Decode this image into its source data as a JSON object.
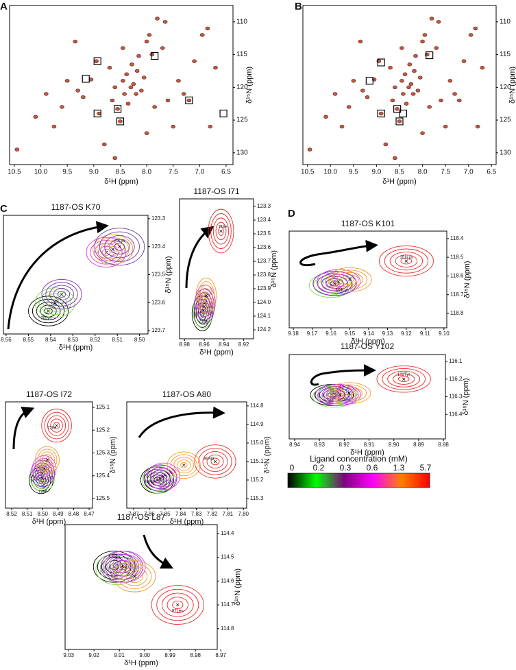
{
  "chart_data": [
    {
      "type": "scatter",
      "panel": "A",
      "x_label": "δ¹H (ppm)",
      "y_label": "δ¹⁵N (ppm)",
      "color": "#c25a45",
      "xlim": [
        10.59,
        6.37
      ],
      "ylim": [
        107.5,
        131.8
      ],
      "xticks": [
        10.5,
        {
          "value": 10,
          "label": "10.0"
        },
        9.5,
        {
          "value": 9,
          "label": "9.0"
        },
        8.5,
        {
          "value": 8,
          "label": "8.0"
        },
        7.5,
        {
          "value": 7,
          "label": "7.0"
        },
        6.5
      ],
      "yticks": [
        110,
        115,
        120,
        125,
        130
      ],
      "x": [
        10.45,
        10.1,
        9.9,
        9.75,
        9.6,
        9.5,
        9.3,
        9.2,
        9.05,
        8.95,
        8.9,
        8.8,
        8.7,
        8.65,
        8.6,
        8.55,
        8.5,
        8.45,
        8.42,
        8.38,
        8.35,
        8.3,
        8.28,
        8.25,
        8.2,
        8.18,
        8.15,
        8.1,
        8.05,
        8.0,
        7.95,
        7.9,
        7.85,
        7.8,
        7.7,
        7.6,
        7.5,
        7.4,
        7.3,
        7.2,
        7.1,
        6.95,
        6.85,
        6.8,
        6.7,
        8.6,
        8.0,
        9.35,
        7.65,
        8.45
      ],
      "y": [
        129.5,
        124.5,
        121,
        126,
        123,
        119,
        120.5,
        121.5,
        118.8,
        116,
        124,
        128.7,
        117,
        122,
        120,
        123.3,
        125.2,
        119,
        121,
        118,
        122.5,
        120,
        116.5,
        119.5,
        121,
        117.5,
        115.2,
        120.5,
        118.5,
        113,
        112,
        115,
        123,
        109.5,
        114,
        122,
        126,
        119,
        121,
        122,
        116,
        112,
        111,
        126,
        117,
        130.8,
        127,
        113,
        110,
        114
      ],
      "boxes": {
        "x": [
          8.93,
          9.15,
          7.85,
          8.55,
          8.93,
          8.5,
          7.2,
          6.55
        ],
        "y": [
          116,
          118.7,
          115.2,
          123.3,
          124,
          125.2,
          122,
          124
        ]
      }
    },
    {
      "type": "scatter",
      "panel": "B",
      "x_label": "δ¹H (ppm)",
      "y_label": "δ¹⁵N (ppm)",
      "color": "#c25a45",
      "xlim": [
        10.6,
        6.4
      ],
      "ylim": [
        107.5,
        131.8
      ],
      "xticks": [
        10.5,
        {
          "value": 10,
          "label": "10.0"
        },
        9.5,
        {
          "value": 9,
          "label": "9.0"
        },
        8.5,
        {
          "value": 8,
          "label": "8.0"
        },
        7.5,
        {
          "value": 7,
          "label": "7.0"
        },
        6.5
      ],
      "yticks": [
        110,
        115,
        120,
        125,
        130
      ],
      "x": [
        10.45,
        10.1,
        9.9,
        9.75,
        9.6,
        9.5,
        9.3,
        9.2,
        9.05,
        8.95,
        8.9,
        8.8,
        8.7,
        8.65,
        8.6,
        8.55,
        8.5,
        8.45,
        8.42,
        8.38,
        8.35,
        8.3,
        8.28,
        8.25,
        8.2,
        8.18,
        8.15,
        8.1,
        8.05,
        8.0,
        7.95,
        7.9,
        7.85,
        7.8,
        7.7,
        7.6,
        7.5,
        7.4,
        7.3,
        7.2,
        7.1,
        6.95,
        6.85,
        6.8,
        6.7,
        8.6,
        8.0,
        9.35,
        7.65,
        8.45
      ],
      "y": [
        129.5,
        124.5,
        121,
        126,
        123,
        119,
        120.5,
        121.5,
        118.8,
        116,
        124,
        128.7,
        117,
        122,
        120,
        123.3,
        125.2,
        119,
        121,
        118,
        122.5,
        120,
        116.5,
        119.5,
        121,
        117.5,
        115.2,
        120.5,
        118.5,
        113,
        112,
        115,
        123,
        109.5,
        114,
        122,
        126,
        119,
        121,
        122,
        116,
        112,
        111,
        126,
        117,
        130.8,
        127,
        113,
        110,
        114
      ],
      "boxes": {
        "x": [
          8.9,
          9.15,
          7.85,
          8.55,
          8.42,
          8.9,
          8.5
        ],
        "y": [
          116.2,
          119,
          115.1,
          123.3,
          124,
          124,
          125.2
        ]
      }
    },
    {
      "type": "contour",
      "panel": "C",
      "title": "1187-OS K70",
      "x_label": "δ¹H (ppm)",
      "y_label": "δ¹⁵N (ppm)",
      "xlim": [
        8.5612,
        8.4962
      ],
      "ylim": [
        123.288,
        123.712
      ],
      "xticks": [
        8.56,
        8.55,
        8.54,
        8.53,
        8.52,
        8.51,
        {
          "value": 8.5,
          "label": "8.50"
        }
      ],
      "yticks": [
        123.3,
        123.4,
        123.5,
        123.6,
        123.7
      ],
      "contours": [
        {
          "color": "#000000",
          "x": 8.541,
          "y": 123.63
        },
        {
          "color": "#7ee04a",
          "x": 8.538,
          "y": 123.6
        },
        {
          "color": "#7b2fbe",
          "x": 8.535,
          "y": 123.57
        },
        {
          "color": "#e03ce0",
          "x": 8.515,
          "y": 123.42
        },
        {
          "color": "#f39a2c",
          "x": 8.512,
          "y": 123.41
        },
        {
          "color": "#6a3fa0",
          "x": 8.509,
          "y": 123.4
        }
      ],
      "peak_labels": [
        {
          "text": "70Lys",
          "x": 8.509,
          "y": 123.38
        },
        {
          "text": "70Lys",
          "x": 8.542,
          "y": 123.655
        }
      ]
    },
    {
      "type": "contour",
      "title": "1187-OS I71",
      "x_label": "δ¹H (ppm)",
      "y_label": "δ¹⁵N (ppm)",
      "xlim": [
        8.985,
        8.91
      ],
      "ylim": [
        123.245,
        124.265
      ],
      "xticks": [
        8.98,
        8.96,
        8.94,
        8.92
      ],
      "yticks": [
        123.3,
        123.4,
        123.5,
        123.6,
        123.7,
        123.8,
        123.9,
        {
          "value": 124,
          "label": "124.0"
        },
        124.1,
        124.2
      ],
      "contours": [
        {
          "color": "#000000",
          "x": 8.962,
          "y": 124.08
        },
        {
          "color": "#7ee04a",
          "x": 8.961,
          "y": 124.06
        },
        {
          "color": "#7b2fbe",
          "x": 8.96,
          "y": 124.03
        },
        {
          "color": "#e03ce0",
          "x": 8.959,
          "y": 124.0
        },
        {
          "color": "#f39a2c",
          "x": 8.958,
          "y": 123.95
        },
        {
          "color": "#ee2a2a",
          "x": 8.943,
          "y": 123.48
        }
      ],
      "peak_labels": [
        {
          "text": "71Ile",
          "x": 8.941,
          "y": 123.45
        },
        {
          "text": "71Ile",
          "x": 8.961,
          "y": 124.14
        }
      ]
    },
    {
      "type": "contour",
      "title": "1187-OS I72",
      "x_label": "δ¹H (ppm)",
      "y_label": "δ¹⁵N (ppm)",
      "xlim": [
        8.524,
        8.4678
      ],
      "ylim": [
        125.076,
        125.542
      ],
      "xticks": [
        8.52,
        8.51,
        {
          "value": 8.5,
          "label": "8.50"
        },
        8.49,
        8.48,
        8.47
      ],
      "yticks": [
        125.1,
        125.2,
        125.3,
        125.4,
        125.5
      ],
      "contours": [
        {
          "color": "#000000",
          "x": 8.501,
          "y": 125.42
        },
        {
          "color": "#7ee04a",
          "x": 8.5,
          "y": 125.41
        },
        {
          "color": "#7b2fbe",
          "x": 8.5,
          "y": 125.39
        },
        {
          "color": "#e03ce0",
          "x": 8.499,
          "y": 125.37
        },
        {
          "color": "#f39a2c",
          "x": 8.497,
          "y": 125.33
        },
        {
          "color": "#ee2a2a",
          "x": 8.491,
          "y": 125.18
        }
      ],
      "peak_labels": [
        {
          "text": "72Ile",
          "x": 8.494,
          "y": 125.19
        },
        {
          "text": "72Ile",
          "x": 8.5,
          "y": 125.47
        }
      ]
    },
    {
      "type": "contour",
      "title": "1187-OS A80",
      "x_label": "δ¹H (ppm)",
      "y_label": "δ¹⁵N (ppm)",
      "xlim": [
        7.8744,
        7.7979
      ],
      "ylim": [
        114.778,
        115.352
      ],
      "xticks": [
        7.87,
        7.86,
        7.85,
        7.84,
        7.83,
        7.82,
        7.81,
        {
          "value": 7.8,
          "label": "7.80"
        }
      ],
      "yticks": [
        114.8,
        114.9,
        {
          "value": 115,
          "label": "115.0"
        },
        115.1,
        115.2,
        115.3
      ],
      "contours": [
        {
          "color": "#000000",
          "x": 7.855,
          "y": 115.2
        },
        {
          "color": "#7ee04a",
          "x": 7.854,
          "y": 115.2
        },
        {
          "color": "#7b2fbe",
          "x": 7.853,
          "y": 115.19
        },
        {
          "color": "#e03ce0",
          "x": 7.851,
          "y": 115.18
        },
        {
          "color": "#f39a2c",
          "x": 7.838,
          "y": 115.12
        },
        {
          "color": "#ee2a2a",
          "x": 7.818,
          "y": 115.1
        }
      ],
      "peak_labels": [
        {
          "text": "80Ala",
          "x": 7.822,
          "y": 115.085
        },
        {
          "text": "80Ala",
          "x": 7.86,
          "y": 115.21
        }
      ]
    },
    {
      "type": "contour",
      "title": "1187-OS L87",
      "x_label": "δ¹H (ppm)",
      "y_label": "δ¹⁵N (ppm)",
      "xlim": [
        9.0314,
        8.9714
      ],
      "ylim": [
        114.363,
        114.887
      ],
      "xticks": [
        9.03,
        9.02,
        9.01,
        {
          "value": 9,
          "label": "9.00"
        },
        8.99,
        8.98,
        8.97
      ],
      "yticks": [
        114.4,
        114.5,
        114.6,
        114.7,
        114.8
      ],
      "contours": [
        {
          "color": "#000000",
          "x": 9.012,
          "y": 114.54
        },
        {
          "color": "#7ee04a",
          "x": 9.011,
          "y": 114.55
        },
        {
          "color": "#7b2fbe",
          "x": 9.009,
          "y": 114.54
        },
        {
          "color": "#e03ce0",
          "x": 9.008,
          "y": 114.54
        },
        {
          "color": "#f39a2c",
          "x": 9.004,
          "y": 114.58
        },
        {
          "color": "#ee2a2a",
          "x": 8.987,
          "y": 114.7
        }
      ],
      "peak_labels": [
        {
          "text": "87Leu",
          "x": 9.012,
          "y": 114.5
        },
        {
          "text": "87Leu",
          "x": 8.987,
          "y": 114.725
        }
      ]
    },
    {
      "type": "contour",
      "panel": "D",
      "title": "1187-OS K101",
      "x_label": "δ¹H (ppm)",
      "y_label": "δ¹⁵N (ppm)",
      "xlim": [
        9.1822,
        9.0985
      ],
      "ylim": [
        118.36,
        118.877
      ],
      "xticks": [
        9.18,
        9.17,
        9.16,
        9.15,
        9.14,
        9.13,
        9.12,
        9.11,
        {
          "value": 9.1,
          "label": "9.10"
        }
      ],
      "yticks": [
        118.4,
        118.5,
        118.6,
        118.7,
        118.8
      ],
      "contours": [
        {
          "color": "#000000",
          "x": 9.158,
          "y": 118.64
        },
        {
          "color": "#7ee04a",
          "x": 9.16,
          "y": 118.65
        },
        {
          "color": "#7b2fbe",
          "x": 9.158,
          "y": 118.64
        },
        {
          "color": "#e03ce0",
          "x": 9.156,
          "y": 118.63
        },
        {
          "color": "#f39a2c",
          "x": 9.15,
          "y": 118.62
        },
        {
          "color": "#ee2a2a",
          "x": 9.12,
          "y": 118.52
        }
      ],
      "peak_labels": [
        {
          "text": "101Lys",
          "x": 9.12,
          "y": 118.5
        },
        {
          "text": "101Lys",
          "x": 9.154,
          "y": 118.675
        }
      ]
    },
    {
      "type": "contour",
      "title": "1187-OS Y102",
      "x_label": "δ¹H (ppm)",
      "y_label": "δ¹⁵N (ppm)",
      "xlim": [
        8.9422,
        8.8792
      ],
      "ylim": [
        116.061,
        116.539
      ],
      "xticks": [
        8.94,
        8.93,
        8.92,
        8.91,
        {
          "value": 8.9,
          "label": "8.90"
        },
        8.89,
        8.88
      ],
      "yticks": [
        116.1,
        116.2,
        116.3,
        116.4
      ],
      "contours": [
        {
          "color": "#000000",
          "x": 8.925,
          "y": 116.29
        },
        {
          "color": "#7ee04a",
          "x": 8.924,
          "y": 116.3
        },
        {
          "color": "#7b2fbe",
          "x": 8.923,
          "y": 116.29
        },
        {
          "color": "#e03ce0",
          "x": 8.922,
          "y": 116.29
        },
        {
          "color": "#f39a2c",
          "x": 8.918,
          "y": 116.28
        },
        {
          "color": "#ee2a2a",
          "x": 8.896,
          "y": 116.2
        }
      ],
      "peak_labels": [
        {
          "text": "102Tyr",
          "x": 8.896,
          "y": 116.175
        },
        {
          "text": "102Tyr",
          "x": 8.92,
          "y": 116.32
        }
      ]
    }
  ],
  "legend": {
    "title": "Ligand concentration (mM)",
    "labels": [
      0,
      0.2,
      0.3,
      0.6,
      1.3,
      5.7
    ],
    "colors": [
      "#000000",
      "#00ff00",
      "#800080",
      "#ff00ff",
      "#ff8000",
      "#ff0000"
    ]
  }
}
